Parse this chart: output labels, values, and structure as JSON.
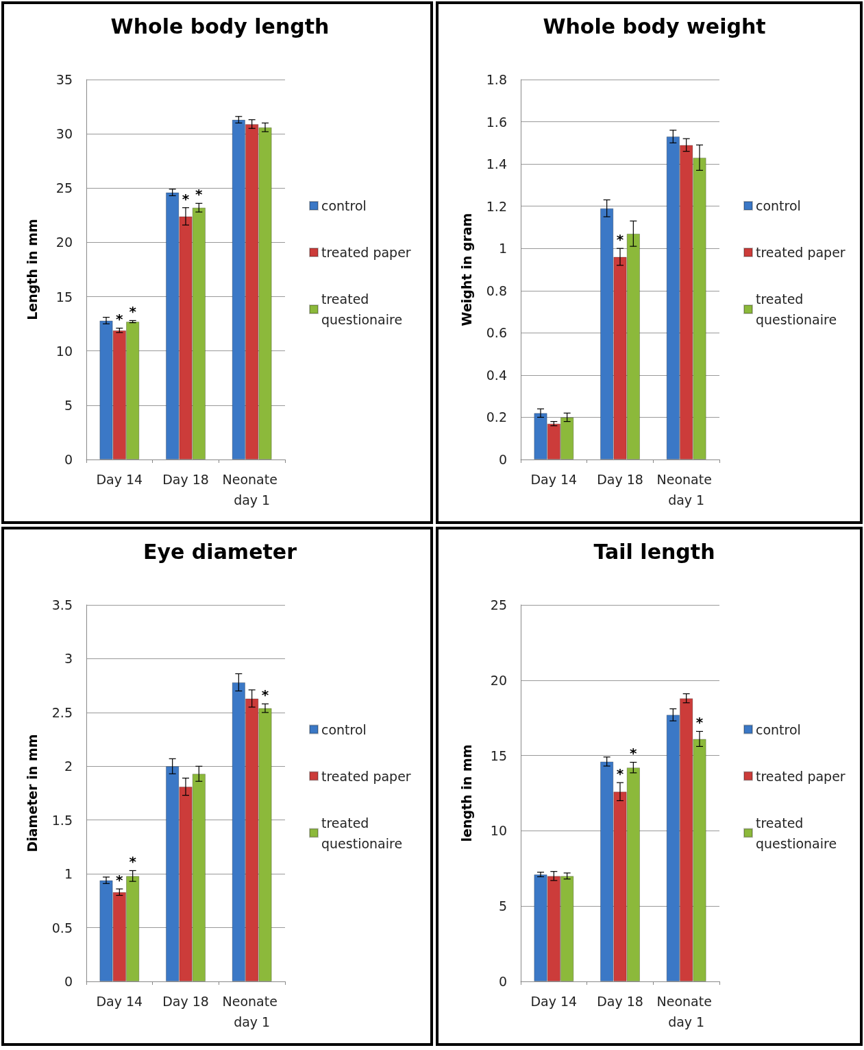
{
  "chart_data": [
    {
      "type": "bar",
      "title": "Whole body length",
      "ylabel": "Length in mm",
      "categories": [
        "Day 14",
        "Day 18",
        "Neonate day 1"
      ],
      "ylim": [
        0,
        35
      ],
      "yticks": [
        0,
        5,
        10,
        15,
        20,
        25,
        30,
        35
      ],
      "grid": "y",
      "legend": "right",
      "series": [
        {
          "name": "control",
          "color": "#3b78c6",
          "values": [
            12.8,
            24.6,
            31.3
          ],
          "errors": [
            0.3,
            0.3,
            0.3
          ]
        },
        {
          "name": "treated paper",
          "color": "#cc3c3a",
          "values": [
            11.9,
            22.4,
            30.9
          ],
          "errors": [
            0.2,
            0.8,
            0.4
          ],
          "value_labels": [
            "*",
            "*",
            null
          ]
        },
        {
          "name": "treated questionaire",
          "color": "#8cb93b",
          "values": [
            12.7,
            23.2,
            30.6
          ],
          "errors": [
            0.1,
            0.4,
            0.4
          ],
          "value_labels": [
            "*",
            "*",
            null
          ]
        }
      ]
    },
    {
      "type": "bar",
      "title": "Whole body weight",
      "ylabel": "Weight in gram",
      "categories": [
        "Day 14",
        "Day 18",
        "Neonate day 1"
      ],
      "ylim": [
        0,
        1.8
      ],
      "yticks": [
        0,
        0.2,
        0.4,
        0.6,
        0.8,
        1,
        1.2,
        1.4,
        1.6,
        1.8
      ],
      "grid": "y",
      "legend": "right",
      "series": [
        {
          "name": "control",
          "color": "#3b78c6",
          "values": [
            0.22,
            1.19,
            1.53
          ],
          "errors": [
            0.02,
            0.04,
            0.03
          ]
        },
        {
          "name": "treated paper",
          "color": "#cc3c3a",
          "values": [
            0.17,
            0.96,
            1.49
          ],
          "errors": [
            0.01,
            0.04,
            0.03
          ],
          "value_labels": [
            null,
            "*",
            null
          ]
        },
        {
          "name": "treated questionaire",
          "color": "#8cb93b",
          "values": [
            0.2,
            1.07,
            1.43
          ],
          "errors": [
            0.02,
            0.06,
            0.06
          ]
        }
      ]
    },
    {
      "type": "bar",
      "title": "Eye diameter",
      "ylabel": "Diameter in mm",
      "categories": [
        "Day 14",
        "Day 18",
        "Neonate day 1"
      ],
      "ylim": [
        0,
        3.5
      ],
      "yticks": [
        0,
        0.5,
        1,
        1.5,
        2,
        2.5,
        3,
        3.5
      ],
      "grid": "y",
      "legend": "right",
      "series": [
        {
          "name": "control",
          "color": "#3b78c6",
          "values": [
            0.94,
            2.0,
            2.78
          ],
          "errors": [
            0.03,
            0.07,
            0.08
          ]
        },
        {
          "name": "treated paper",
          "color": "#cc3c3a",
          "values": [
            0.83,
            1.81,
            2.63
          ],
          "errors": [
            0.03,
            0.08,
            0.08
          ],
          "value_labels": [
            "*",
            null,
            null
          ]
        },
        {
          "name": "treated questionaire",
          "color": "#8cb93b",
          "values": [
            0.98,
            1.93,
            2.54
          ],
          "errors": [
            0.05,
            0.07,
            0.04
          ],
          "value_labels": [
            "*",
            null,
            "*"
          ]
        }
      ]
    },
    {
      "type": "bar",
      "title": "Tail length",
      "ylabel": "length in mm",
      "categories": [
        "Day 14",
        "Day 18",
        "Neonate day 1"
      ],
      "ylim": [
        0,
        25
      ],
      "yticks": [
        0,
        5,
        10,
        15,
        20,
        25
      ],
      "grid": "y",
      "legend": "right",
      "series": [
        {
          "name": "control",
          "color": "#3b78c6",
          "values": [
            7.1,
            14.6,
            17.7
          ],
          "errors": [
            0.15,
            0.3,
            0.4
          ]
        },
        {
          "name": "treated paper",
          "color": "#cc3c3a",
          "values": [
            7.0,
            12.6,
            18.8
          ],
          "errors": [
            0.3,
            0.6,
            0.3
          ],
          "value_labels": [
            null,
            "*",
            null
          ]
        },
        {
          "name": "treated questionaire",
          "color": "#8cb93b",
          "values": [
            7.0,
            14.2,
            16.1
          ],
          "errors": [
            0.2,
            0.35,
            0.5
          ],
          "value_labels": [
            null,
            "*",
            "*"
          ]
        }
      ]
    }
  ]
}
